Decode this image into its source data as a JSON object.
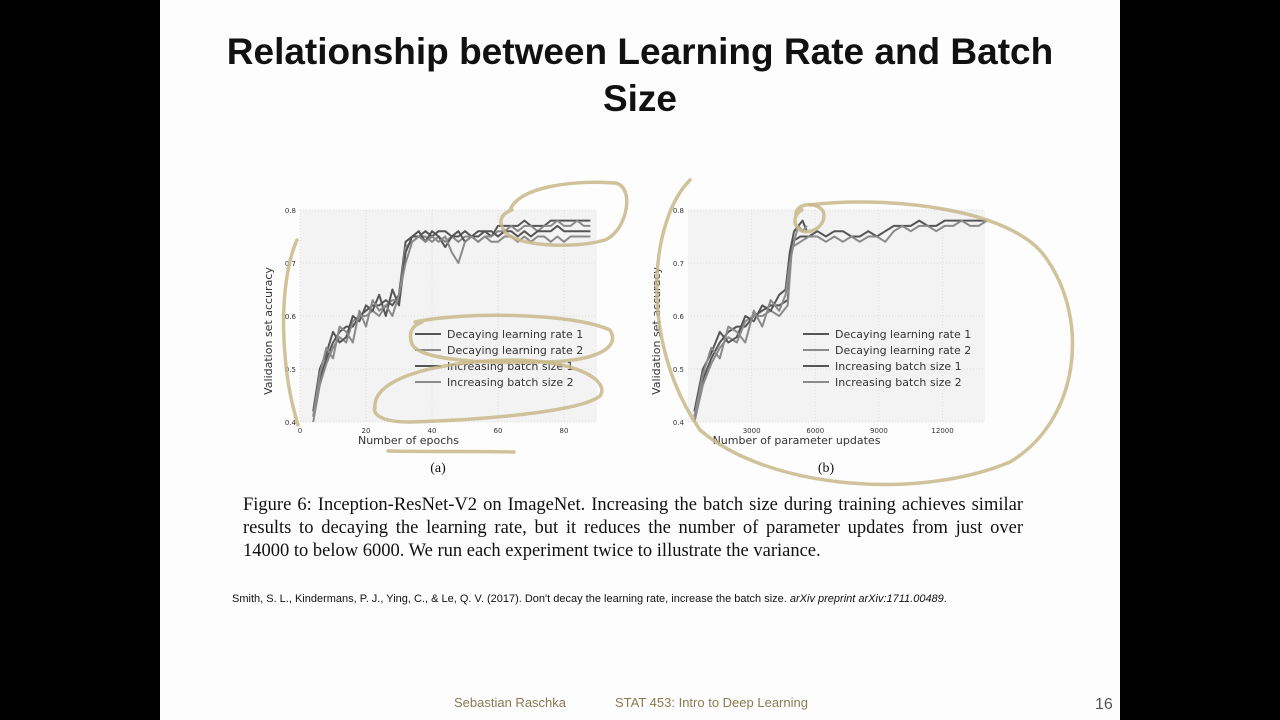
{
  "slide": {
    "title_line1": "Relationship between Learning Rate and Batch",
    "title_line2": "Size",
    "caption": "Figure 6: Inception-ResNet-V2 on ImageNet. Increasing the batch size during training achieves similar results to decaying the learning rate, but it reduces the number of parameter updates from just over 14000 to below 6000. We run each experiment twice to illustrate the variance.",
    "citation_plain": "Smith, S. L., Kindermans, P. J., Ying, C., & Le, Q. V. (2017). Don't decay the learning rate, increase the batch size.",
    "citation_italic": "arXiv preprint arXiv:1711.00489",
    "citation_end": ".",
    "footer_author": "Sebastian Raschka",
    "footer_course": "STAT 453: Intro to Deep Learning",
    "page_number": "16"
  },
  "colors": {
    "annotation": "#c8b98a",
    "line_dark": "#555555",
    "line_light": "#8a8a8a",
    "plot_bg": "#f3f3f3"
  },
  "chart_data": [
    {
      "type": "line",
      "panel_label": "(a)",
      "xlabel": "Number of epochs",
      "ylabel": "Validation set accuracy",
      "xlim": [
        0,
        90
      ],
      "ylim": [
        0.4,
        0.8
      ],
      "x_ticks": [
        "0",
        "20",
        "40",
        "60",
        "80"
      ],
      "x_tick_values": [
        0,
        20,
        40,
        60,
        80
      ],
      "y_ticks": [
        "0.4",
        "0.5",
        "0.6",
        "0.7",
        "0.8"
      ],
      "y_tick_values": [
        0.4,
        0.5,
        0.6,
        0.7,
        0.8
      ],
      "legend_position": "lower-right",
      "series": [
        {
          "name": "Decaying learning rate 1",
          "x": [
            4,
            6,
            8,
            10,
            12,
            14,
            16,
            18,
            20,
            22,
            24,
            26,
            28,
            30,
            32,
            34,
            36,
            38,
            40,
            42,
            44,
            46,
            48,
            50,
            52,
            54,
            56,
            58,
            60,
            62,
            64,
            66,
            68,
            70,
            72,
            74,
            76,
            78,
            80,
            82,
            84,
            86,
            88
          ],
          "y": [
            0.41,
            0.48,
            0.52,
            0.55,
            0.57,
            0.58,
            0.58,
            0.6,
            0.61,
            0.62,
            0.62,
            0.63,
            0.62,
            0.64,
            0.74,
            0.75,
            0.75,
            0.76,
            0.75,
            0.76,
            0.76,
            0.75,
            0.75,
            0.76,
            0.75,
            0.76,
            0.76,
            0.75,
            0.77,
            0.77,
            0.77,
            0.77,
            0.78,
            0.77,
            0.77,
            0.77,
            0.78,
            0.78,
            0.78,
            0.78,
            0.78,
            0.78,
            0.78
          ]
        },
        {
          "name": "Decaying learning rate 2",
          "x": [
            4,
            6,
            8,
            10,
            12,
            14,
            16,
            18,
            20,
            22,
            24,
            26,
            28,
            30,
            32,
            34,
            36,
            38,
            40,
            42,
            44,
            46,
            48,
            50,
            52,
            54,
            56,
            58,
            60,
            62,
            64,
            66,
            68,
            70,
            72,
            74,
            76,
            78,
            80,
            82,
            84,
            86,
            88
          ],
          "y": [
            0.4,
            0.47,
            0.51,
            0.54,
            0.56,
            0.55,
            0.59,
            0.6,
            0.6,
            0.61,
            0.6,
            0.62,
            0.63,
            0.63,
            0.73,
            0.74,
            0.75,
            0.75,
            0.74,
            0.75,
            0.74,
            0.75,
            0.74,
            0.75,
            0.75,
            0.74,
            0.75,
            0.75,
            0.76,
            0.76,
            0.77,
            0.76,
            0.77,
            0.77,
            0.76,
            0.77,
            0.77,
            0.78,
            0.77,
            0.77,
            0.78,
            0.77,
            0.77
          ]
        },
        {
          "name": "Increasing batch size 1",
          "x": [
            4,
            6,
            8,
            10,
            12,
            14,
            16,
            18,
            20,
            22,
            24,
            26,
            28,
            30,
            32,
            34,
            36,
            38,
            40,
            42,
            44,
            46,
            48,
            50,
            52,
            54,
            56,
            58,
            60,
            62,
            64,
            66,
            68,
            70,
            72,
            74,
            76,
            78,
            80,
            82,
            84,
            86,
            88
          ],
          "y": [
            0.42,
            0.5,
            0.53,
            0.57,
            0.55,
            0.56,
            0.6,
            0.59,
            0.62,
            0.61,
            0.64,
            0.6,
            0.65,
            0.62,
            0.72,
            0.75,
            0.76,
            0.74,
            0.76,
            0.75,
            0.73,
            0.75,
            0.76,
            0.74,
            0.75,
            0.75,
            0.76,
            0.76,
            0.75,
            0.76,
            0.76,
            0.75,
            0.76,
            0.75,
            0.76,
            0.76,
            0.76,
            0.77,
            0.76,
            0.76,
            0.76,
            0.76,
            0.76
          ]
        },
        {
          "name": "Increasing batch size 2",
          "x": [
            4,
            6,
            8,
            10,
            12,
            14,
            16,
            18,
            20,
            22,
            24,
            26,
            28,
            30,
            32,
            34,
            36,
            38,
            40,
            42,
            44,
            46,
            48,
            50,
            52,
            54,
            56,
            58,
            60,
            62,
            64,
            66,
            68,
            70,
            72,
            74,
            76,
            78,
            80,
            82,
            84,
            86,
            88
          ],
          "y": [
            0.41,
            0.49,
            0.54,
            0.52,
            0.58,
            0.57,
            0.55,
            0.61,
            0.58,
            0.63,
            0.61,
            0.62,
            0.6,
            0.64,
            0.7,
            0.74,
            0.75,
            0.74,
            0.75,
            0.74,
            0.75,
            0.72,
            0.7,
            0.74,
            0.75,
            0.74,
            0.75,
            0.74,
            0.74,
            0.75,
            0.75,
            0.74,
            0.75,
            0.74,
            0.75,
            0.75,
            0.74,
            0.75,
            0.74,
            0.75,
            0.75,
            0.75,
            0.75
          ]
        }
      ]
    },
    {
      "type": "line",
      "panel_label": "(b)",
      "xlabel": "Number of parameter updates",
      "ylabel": "Validation set accuracy",
      "xlim": [
        0,
        14000
      ],
      "ylim": [
        0.4,
        0.8
      ],
      "x_ticks": [
        "3000",
        "6000",
        "9000",
        "12000"
      ],
      "x_tick_values": [
        3000,
        6000,
        9000,
        12000
      ],
      "y_ticks": [
        "0.4",
        "0.5",
        "0.6",
        "0.7",
        "0.8"
      ],
      "y_tick_values": [
        0.4,
        0.5,
        0.6,
        0.7,
        0.8
      ],
      "legend_position": "lower-right",
      "series": [
        {
          "name": "Decaying learning rate 1",
          "x": [
            300,
            700,
            1100,
            1500,
            1900,
            2300,
            2700,
            3100,
            3500,
            3900,
            4300,
            4700,
            4900,
            5300,
            5700,
            6100,
            6500,
            6900,
            7300,
            7700,
            8100,
            8500,
            8900,
            9300,
            9700,
            10100,
            10500,
            10900,
            11300,
            11700,
            12100,
            12500,
            12900,
            13300,
            13700,
            14100
          ],
          "y": [
            0.41,
            0.48,
            0.52,
            0.55,
            0.57,
            0.58,
            0.58,
            0.6,
            0.61,
            0.62,
            0.62,
            0.63,
            0.74,
            0.75,
            0.75,
            0.76,
            0.75,
            0.76,
            0.76,
            0.75,
            0.75,
            0.76,
            0.75,
            0.76,
            0.77,
            0.77,
            0.77,
            0.78,
            0.77,
            0.77,
            0.78,
            0.78,
            0.78,
            0.78,
            0.78,
            0.78
          ]
        },
        {
          "name": "Decaying learning rate 2",
          "x": [
            300,
            700,
            1100,
            1500,
            1900,
            2300,
            2700,
            3100,
            3500,
            3900,
            4300,
            4700,
            4900,
            5300,
            5700,
            6100,
            6500,
            6900,
            7300,
            7700,
            8100,
            8500,
            8900,
            9300,
            9700,
            10100,
            10500,
            10900,
            11300,
            11700,
            12100,
            12500,
            12900,
            13300,
            13700,
            14100
          ],
          "y": [
            0.4,
            0.47,
            0.51,
            0.54,
            0.56,
            0.55,
            0.59,
            0.6,
            0.6,
            0.61,
            0.6,
            0.62,
            0.73,
            0.74,
            0.75,
            0.75,
            0.74,
            0.75,
            0.74,
            0.75,
            0.74,
            0.75,
            0.75,
            0.74,
            0.76,
            0.77,
            0.76,
            0.77,
            0.77,
            0.76,
            0.77,
            0.77,
            0.78,
            0.77,
            0.77,
            0.78
          ]
        },
        {
          "name": "Increasing batch size 1",
          "x": [
            300,
            700,
            1100,
            1500,
            1900,
            2300,
            2700,
            3100,
            3500,
            3900,
            4300,
            4600,
            4800,
            5000,
            5200,
            5400,
            5600
          ],
          "y": [
            0.42,
            0.5,
            0.53,
            0.57,
            0.55,
            0.56,
            0.6,
            0.59,
            0.62,
            0.61,
            0.64,
            0.65,
            0.72,
            0.76,
            0.77,
            0.78,
            0.76
          ]
        },
        {
          "name": "Increasing batch size 2",
          "x": [
            300,
            700,
            1100,
            1500,
            1900,
            2300,
            2700,
            3100,
            3500,
            3900,
            4300,
            4600,
            4800,
            5000,
            5200,
            5400,
            5600
          ],
          "y": [
            0.41,
            0.49,
            0.54,
            0.52,
            0.58,
            0.57,
            0.55,
            0.61,
            0.58,
            0.63,
            0.61,
            0.64,
            0.7,
            0.74,
            0.77,
            0.76,
            0.77
          ]
        }
      ]
    }
  ]
}
